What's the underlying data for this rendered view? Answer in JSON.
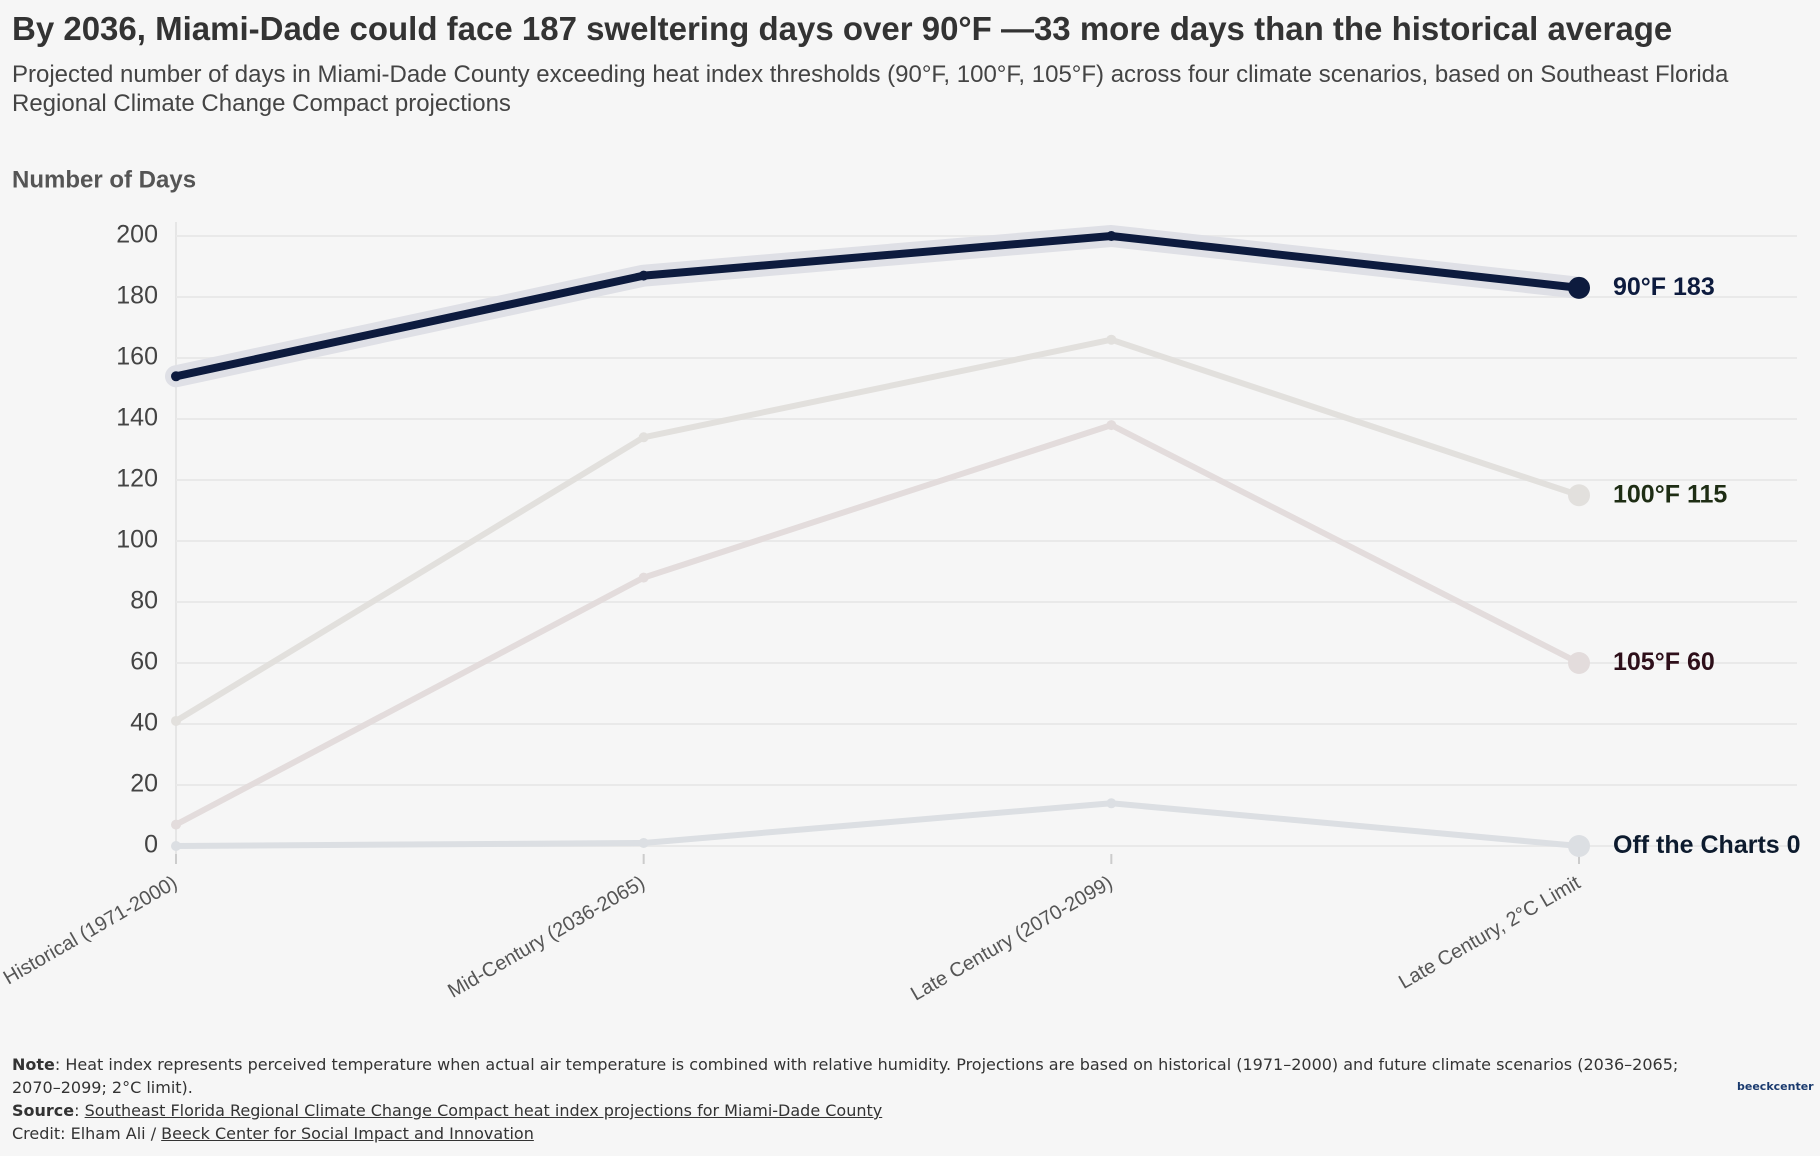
{
  "chart_data": {
    "type": "line",
    "title": "By 2036, Miami-Dade could face 187 sweltering days over 90°F —33 more days than the historical average",
    "subtitle": "Projected number of days in Miami-Dade County exceeding heat index thresholds (90°F, 100°F, 105°F) across four climate scenarios, based on Southeast Florida Regional Climate Change Compact projections",
    "y_label": "Number of Days",
    "categories": [
      "Historical (1971-2000)",
      "Mid-Century (2036-2065)",
      "Late Century (2070-2099)",
      "Late Century, 2°C Limit"
    ],
    "series": [
      {
        "name": "Off the Charts",
        "color": "#dcdfe3",
        "label_color": "#0d1b2e",
        "values": [
          0,
          1,
          14,
          0
        ]
      },
      {
        "name": "105°F",
        "color": "#e3dcdc",
        "label_color": "#2e0f1a",
        "values": [
          7,
          88,
          138,
          60
        ]
      },
      {
        "name": "100°F",
        "color": "#e2e0dd",
        "label_color": "#1e2d14",
        "values": [
          41,
          134,
          166,
          115
        ]
      },
      {
        "name": "90°F",
        "color": "#0d1b3e",
        "label_color": "#0d1b3e",
        "highlight": true,
        "values": [
          154,
          187,
          200,
          183
        ]
      }
    ],
    "ylim": [
      0,
      200
    ],
    "yticks": [
      0,
      20,
      40,
      60,
      80,
      100,
      120,
      140,
      160,
      180,
      200
    ],
    "grid": true
  },
  "footer": {
    "note_label": "Note",
    "note_text": ": Heat index represents perceived temperature when actual air temperature is combined with relative humidity. Projections are based on historical (1971–2000) and future climate scenarios (2036–2065; 2070–2099; 2°C limit).",
    "source_label": "Source",
    "source_sep": ": ",
    "source_text": "Southeast Florida Regional Climate Change Compact heat index projections for Miami-Dade County",
    "credit_prefix": "Credit: Elham Ali / ",
    "credit_link": "Beeck Center for Social Impact and Innovation",
    "logo": "beeckcenter"
  }
}
